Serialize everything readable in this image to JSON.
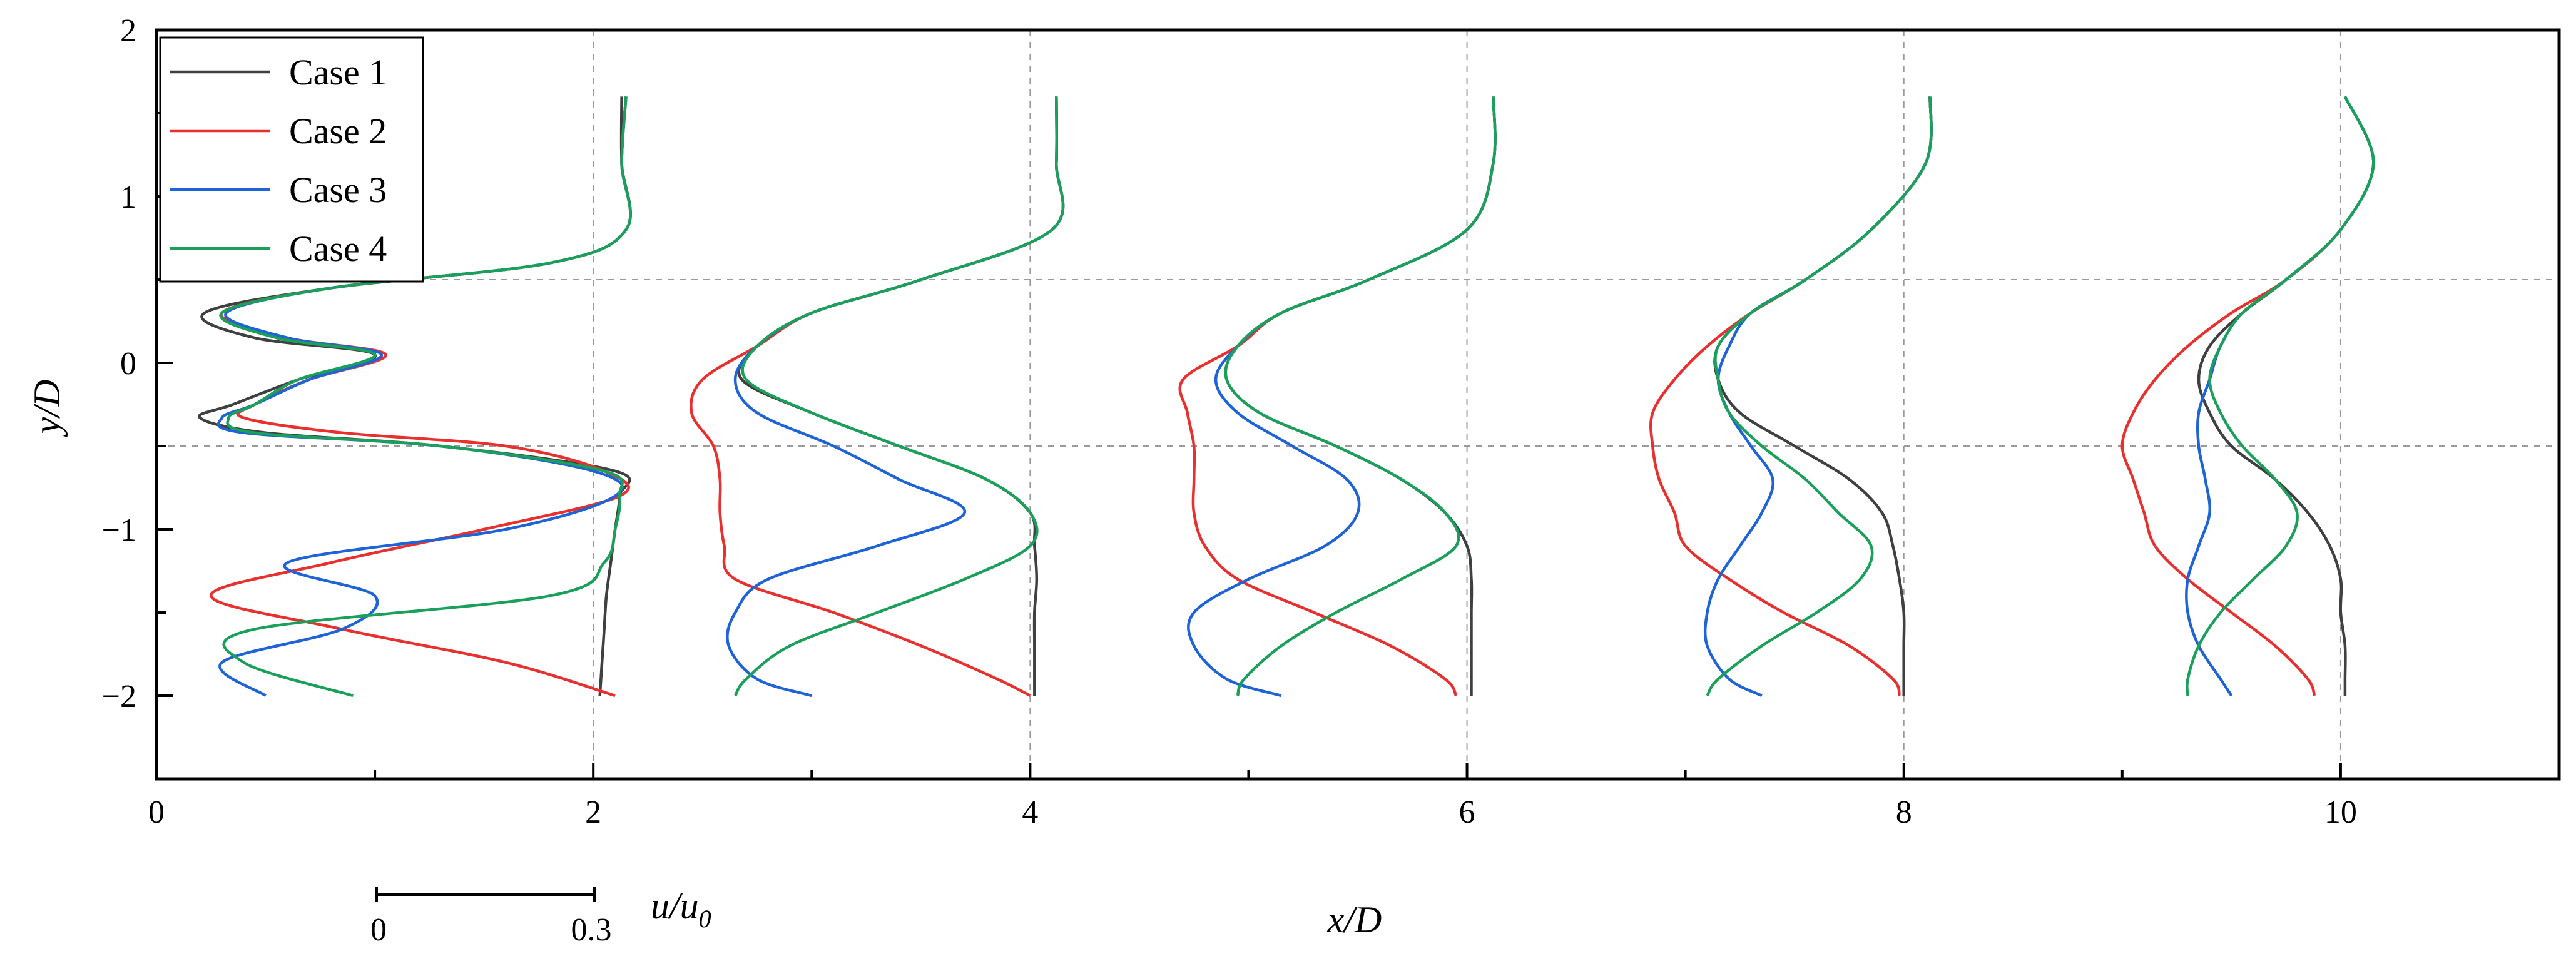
{
  "chart_data": {
    "type": "line",
    "title": "",
    "xlabel": "x/D",
    "ylabel": "y/D",
    "xlim": [
      0,
      11
    ],
    "ylim": [
      -2.5,
      2
    ],
    "x_ticks": [
      0,
      2,
      4,
      6,
      8,
      10
    ],
    "x_tick_labels": [
      "0",
      "2",
      "4",
      "6",
      "8",
      "10"
    ],
    "y_ticks": [
      -2,
      -1,
      0,
      1,
      2
    ],
    "y_tick_labels": [
      "−2",
      "−1",
      "0",
      "1",
      "2"
    ],
    "grid": "dashed x at 2,4,6,8,10; dashed y at -0.5 and 0.5",
    "legend_position": "top-left",
    "profile_stations": [
      2,
      4,
      6,
      8,
      10
    ],
    "velocity_scale": {
      "label": "u/u",
      "sub": "0",
      "min_label": "0",
      "max_label": "0.3"
    },
    "series": [
      {
        "name": "Case 1",
        "color": "#404040"
      },
      {
        "name": "Case 2",
        "color": "#e8302e"
      },
      {
        "name": "Case 3",
        "color": "#1f64d6"
      },
      {
        "name": "Case 4",
        "color": "#1aa05a"
      }
    ],
    "profiles": [
      {
        "station": 2,
        "y": [
          1.6,
          1.2,
          0.8,
          0.6,
          0.45,
          0.3,
          0.15,
          0.05,
          -0.1,
          -0.25,
          -0.33,
          -0.42,
          -0.5,
          -0.65,
          -0.8,
          -1.0,
          -1.2,
          -1.4,
          -1.6,
          -1.8,
          -2.0
        ],
        "curves": [
          [
            2.13,
            2.13,
            2.15,
            1.8,
            0.8,
            0.22,
            0.45,
            1.0,
            0.65,
            0.35,
            0.2,
            0.5,
            1.3,
            2.1,
            2.12,
            2.1,
            2.08,
            2.06,
            2.05,
            2.04,
            2.03
          ],
          [
            2.15,
            2.13,
            2.15,
            1.8,
            0.8,
            0.3,
            0.6,
            1.05,
            0.7,
            0.45,
            0.4,
            0.85,
            1.6,
            2.05,
            2.12,
            1.5,
            0.8,
            0.25,
            0.85,
            1.6,
            2.1
          ],
          [
            2.15,
            2.13,
            2.15,
            1.8,
            0.8,
            0.32,
            0.6,
            1.03,
            0.7,
            0.45,
            0.3,
            0.4,
            1.3,
            2.0,
            2.1,
            1.6,
            0.6,
            1.0,
            0.85,
            0.3,
            0.5
          ],
          [
            2.15,
            2.13,
            2.15,
            1.8,
            0.8,
            0.3,
            0.55,
            1.0,
            0.65,
            0.45,
            0.33,
            0.45,
            1.3,
            2.05,
            2.12,
            2.1,
            2.05,
            1.8,
            0.45,
            0.4,
            0.9
          ]
        ]
      },
      {
        "station": 4,
        "y": [
          1.6,
          1.2,
          0.8,
          0.5,
          0.3,
          0.1,
          -0.1,
          -0.3,
          -0.5,
          -0.7,
          -0.9,
          -1.1,
          -1.3,
          -1.5,
          -1.7,
          -1.9,
          -2.0
        ],
        "curves": [
          [
            4.12,
            4.12,
            4.1,
            3.5,
            3.0,
            2.75,
            2.68,
            3.0,
            3.4,
            3.8,
            4.0,
            4.02,
            4.03,
            4.02,
            4.02,
            4.02,
            4.02
          ],
          [
            4.12,
            4.12,
            4.1,
            3.5,
            3.0,
            2.75,
            2.5,
            2.45,
            2.55,
            2.58,
            2.58,
            2.6,
            2.65,
            3.1,
            3.5,
            3.85,
            4.0
          ],
          [
            4.12,
            4.12,
            4.1,
            3.5,
            3.0,
            2.75,
            2.65,
            2.75,
            3.1,
            3.4,
            3.7,
            3.3,
            2.8,
            2.65,
            2.62,
            2.75,
            3.0
          ],
          [
            4.12,
            4.12,
            4.1,
            3.5,
            3.0,
            2.75,
            2.7,
            3.0,
            3.4,
            3.8,
            4.0,
            4.0,
            3.7,
            3.3,
            2.9,
            2.7,
            2.65
          ]
        ]
      },
      {
        "station": 6,
        "y": [
          1.6,
          1.2,
          0.8,
          0.5,
          0.3,
          0.1,
          -0.1,
          -0.3,
          -0.5,
          -0.7,
          -0.9,
          -1.1,
          -1.3,
          -1.5,
          -1.7,
          -1.9,
          -2.0
        ],
        "curves": [
          [
            6.12,
            6.12,
            6.0,
            5.55,
            5.15,
            4.95,
            4.9,
            5.05,
            5.4,
            5.7,
            5.9,
            6.0,
            6.02,
            6.02,
            6.02,
            6.02,
            6.02
          ],
          [
            6.12,
            6.12,
            6.0,
            5.55,
            5.15,
            4.95,
            4.7,
            4.72,
            4.75,
            4.75,
            4.75,
            4.8,
            4.95,
            5.3,
            5.65,
            5.9,
            5.95
          ],
          [
            6.12,
            6.12,
            6.0,
            5.55,
            5.15,
            4.95,
            4.85,
            4.95,
            5.2,
            5.45,
            5.5,
            5.35,
            5.0,
            4.75,
            4.75,
            4.9,
            5.15
          ],
          [
            6.12,
            6.12,
            6.0,
            5.55,
            5.15,
            4.95,
            4.9,
            5.05,
            5.4,
            5.7,
            5.9,
            5.95,
            5.7,
            5.4,
            5.15,
            4.98,
            4.95
          ]
        ]
      },
      {
        "station": 8,
        "y": [
          1.6,
          1.2,
          0.8,
          0.5,
          0.3,
          0.1,
          -0.1,
          -0.3,
          -0.5,
          -0.7,
          -0.9,
          -1.1,
          -1.3,
          -1.5,
          -1.7,
          -1.9,
          -2.0
        ],
        "curves": [
          [
            8.12,
            8.1,
            7.85,
            7.55,
            7.3,
            7.15,
            7.15,
            7.25,
            7.5,
            7.75,
            7.9,
            7.95,
            7.98,
            8.0,
            8.0,
            8.0,
            8.0
          ],
          [
            8.12,
            8.1,
            7.85,
            7.55,
            7.3,
            7.1,
            6.95,
            6.85,
            6.85,
            6.88,
            6.95,
            7.0,
            7.2,
            7.45,
            7.75,
            7.95,
            7.98
          ],
          [
            8.12,
            8.1,
            7.85,
            7.55,
            7.3,
            7.2,
            7.15,
            7.2,
            7.3,
            7.4,
            7.35,
            7.25,
            7.15,
            7.1,
            7.1,
            7.2,
            7.35
          ],
          [
            8.12,
            8.1,
            7.85,
            7.55,
            7.3,
            7.15,
            7.15,
            7.2,
            7.35,
            7.55,
            7.7,
            7.85,
            7.8,
            7.6,
            7.35,
            7.15,
            7.1
          ]
        ]
      },
      {
        "station": 10,
        "y": [
          1.6,
          1.2,
          0.8,
          0.5,
          0.3,
          0.1,
          -0.1,
          -0.3,
          -0.5,
          -0.7,
          -0.9,
          -1.1,
          -1.3,
          -1.5,
          -1.7,
          -1.9,
          -2.0
        ],
        "curves": [
          [
            10.02,
            10.15,
            10.0,
            9.75,
            9.55,
            9.4,
            9.35,
            9.4,
            9.5,
            9.7,
            9.85,
            9.95,
            10.0,
            10.0,
            10.02,
            10.02,
            10.02
          ],
          [
            10.02,
            10.15,
            10.0,
            9.75,
            9.5,
            9.3,
            9.15,
            9.05,
            9.0,
            9.05,
            9.1,
            9.15,
            9.3,
            9.5,
            9.7,
            9.85,
            9.88
          ],
          [
            10.02,
            10.15,
            10.0,
            9.75,
            9.55,
            9.45,
            9.4,
            9.35,
            9.35,
            9.38,
            9.4,
            9.35,
            9.3,
            9.3,
            9.35,
            9.45,
            9.5
          ],
          [
            10.02,
            10.15,
            10.0,
            9.75,
            9.55,
            9.45,
            9.4,
            9.45,
            9.55,
            9.7,
            9.8,
            9.75,
            9.6,
            9.45,
            9.35,
            9.3,
            9.3
          ]
        ]
      }
    ]
  }
}
